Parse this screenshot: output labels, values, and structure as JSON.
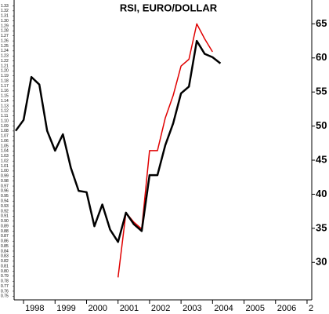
{
  "chart_data": {
    "type": "line",
    "title": "RSI, EURO/DOLLAR",
    "series": [
      {
        "color": "#000000",
        "x": [
          1997.75,
          1998,
          1998.25,
          1998.5,
          1998.75,
          1999,
          1999.25,
          1999.5,
          1999.75,
          2000,
          2000.25,
          2000.5,
          2000.75,
          2001,
          2001.25,
          2001.5,
          2001.75,
          2002,
          2002.25,
          2002.5,
          2002.75,
          2003,
          2003.25,
          2003.5,
          2003.75,
          2004,
          2004.25
        ],
        "values": [
          49.3,
          50.9,
          57.2,
          56.1,
          49.3,
          46.4,
          48.8,
          43.9,
          40.5,
          40.3,
          35.3,
          38.5,
          34.8,
          33.0,
          37.3,
          35.6,
          34.6,
          42.8,
          42.8,
          47.2,
          50.4,
          54.8,
          55.8,
          62.5,
          60.6,
          60.1,
          59.2
        ]
      },
      {
        "color": "#e00000",
        "x": [
          2001,
          2001.25,
          2001.5,
          2001.75,
          2002,
          2002.25,
          2002.5,
          2002.75,
          2003,
          2003.25,
          2003.5,
          2003.75,
          2004
        ],
        "values": [
          27.8,
          37.3,
          35.9,
          34.9,
          46.4,
          46.4,
          51.2,
          54.5,
          58.8,
          59.8,
          65.0,
          62.8,
          60.9
        ]
      }
    ],
    "xlim": [
      1997.7,
      2007.15
    ],
    "xticks": [
      1998,
      1999,
      2000,
      2001,
      2002,
      2003,
      2004,
      2005,
      2006,
      {
        "value": 2007,
        "label": "2"
      }
    ],
    "ylim": [
      24.5,
      68.5
    ],
    "yticks": [
      30,
      35,
      40,
      45,
      50,
      55,
      60,
      65
    ],
    "y2lim": [
      0.7427,
      1.3417
    ],
    "y2ticks": [
      1.33,
      1.32,
      1.31,
      {
        "value": 1.3,
        "label": "1.30"
      },
      1.29,
      1.28,
      1.27,
      1.26,
      1.25,
      1.24,
      1.23,
      1.22,
      1.21,
      {
        "value": 1.2,
        "label": "1.20"
      },
      1.19,
      1.18,
      1.17,
      1.16,
      1.15,
      1.14,
      1.13,
      1.12,
      1.11,
      {
        "value": 1.1,
        "label": "1.10"
      },
      1.09,
      1.08,
      1.07,
      1.06,
      1.05,
      1.04,
      1.03,
      1.02,
      1.01,
      {
        "value": 1,
        "label": "1.00"
      },
      0.99,
      0.98,
      0.97,
      0.96,
      0.95,
      0.94,
      0.93,
      0.92,
      0.91,
      {
        "value": 0.9,
        "label": "0.90"
      },
      0.89,
      0.88,
      0.87,
      0.86,
      0.85,
      0.84,
      0.83,
      0.82,
      0.81,
      {
        "value": 0.8,
        "label": "0.80"
      },
      0.79,
      0.78,
      0.77,
      0.76,
      0.75
    ]
  }
}
